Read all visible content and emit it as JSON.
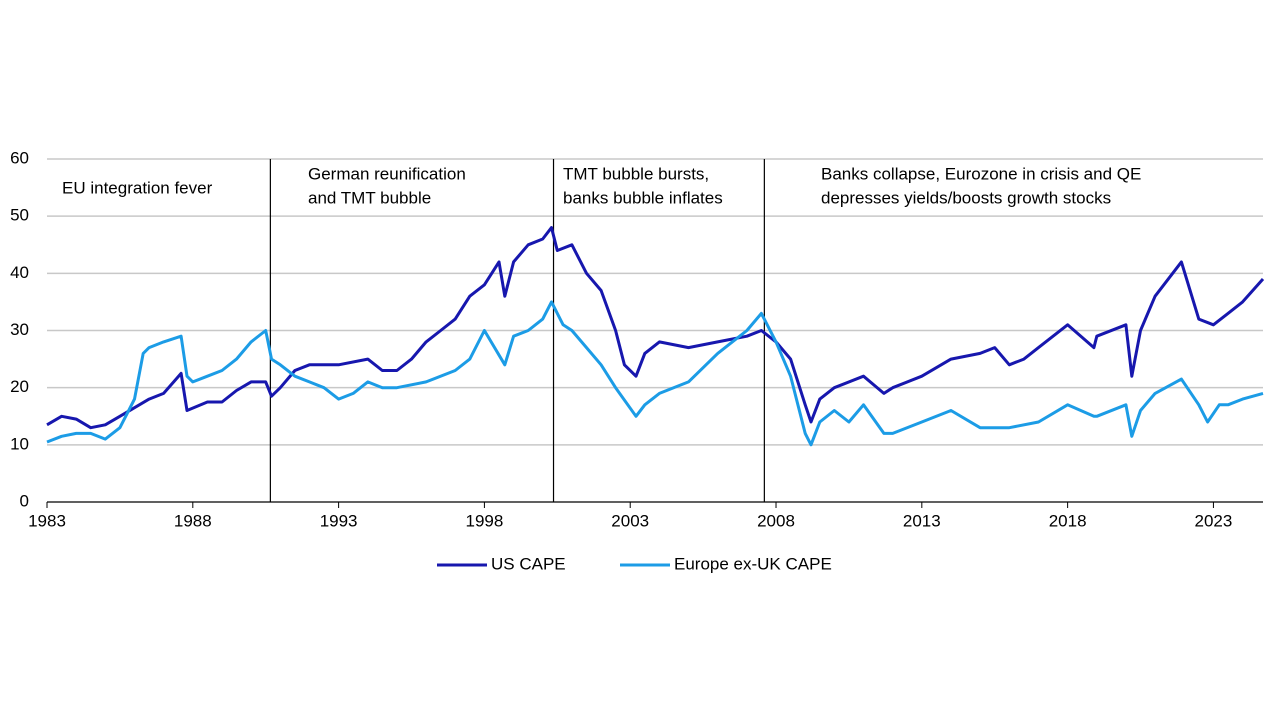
{
  "chart_data": {
    "type": "line",
    "xlim": [
      1983,
      2024.7
    ],
    "xticks": [
      1983,
      1988,
      1993,
      1998,
      2003,
      2008,
      2013,
      2018,
      2023
    ],
    "ylim": [
      0,
      60
    ],
    "yticks": [
      0,
      10,
      20,
      30,
      40,
      50,
      60
    ],
    "grid": true,
    "dividers": [
      1990.66,
      2000.37,
      2007.6
    ],
    "annotations": [
      {
        "lines": [
          "EU integration fever"
        ]
      },
      {
        "lines": [
          "German reunification",
          "and TMT bubble"
        ]
      },
      {
        "lines": [
          "TMT bubble bursts,",
          "banks bubble inflates"
        ]
      },
      {
        "lines": [
          "Banks collapse, Eurozone in crisis and QE",
          "depresses yields/boosts growth stocks"
        ]
      }
    ],
    "series": [
      {
        "name": "US CAPE",
        "color": "#1717ae",
        "x": [
          1983.0,
          1983.5,
          1984.0,
          1984.5,
          1985.0,
          1985.5,
          1986.0,
          1986.5,
          1987.0,
          1987.6,
          1987.8,
          1988.5,
          1989.0,
          1989.5,
          1990.0,
          1990.5,
          1990.7,
          1991.0,
          1991.5,
          1992.0,
          1993.0,
          1994.0,
          1994.5,
          1995.0,
          1995.5,
          1996.0,
          1996.5,
          1997.0,
          1997.5,
          1998.0,
          1998.5,
          1998.7,
          1999.0,
          1999.5,
          2000.0,
          2000.3,
          2000.5,
          2001.0,
          2001.5,
          2002.0,
          2002.5,
          2002.8,
          2003.2,
          2003.5,
          2004.0,
          2005.0,
          2006.0,
          2007.0,
          2007.5,
          2008.0,
          2008.5,
          2009.0,
          2009.2,
          2009.5,
          2010.0,
          2011.0,
          2011.7,
          2012.0,
          2013.0,
          2014.0,
          2015.0,
          2015.5,
          2016.0,
          2016.5,
          2017.0,
          2018.0,
          2018.9,
          2019.0,
          2020.0,
          2020.2,
          2020.5,
          2021.0,
          2021.9,
          2022.5,
          2023.0,
          2023.5,
          2024.0,
          2024.7
        ],
        "values": [
          13.5,
          15,
          14.5,
          13,
          13.5,
          15,
          16.5,
          18,
          19,
          22.5,
          16,
          17.5,
          17.5,
          19.5,
          21,
          21,
          18.5,
          20,
          23,
          24,
          24,
          25,
          23,
          23,
          25,
          28,
          30,
          32,
          36,
          38,
          42,
          36,
          42,
          45,
          46,
          48,
          44,
          45,
          40,
          37,
          30,
          24,
          22,
          26,
          28,
          27,
          28,
          29,
          30,
          28,
          25,
          17,
          14,
          18,
          20,
          22,
          19,
          20,
          22,
          25,
          26,
          27,
          24,
          25,
          27,
          31,
          27,
          29,
          31,
          22,
          30,
          36,
          42,
          32,
          31,
          33,
          35,
          39
        ]
      },
      {
        "name": "Europe ex-UK CAPE",
        "color": "#1c9ce6",
        "x": [
          1983.0,
          1983.5,
          1984.0,
          1984.5,
          1985.0,
          1985.5,
          1986.0,
          1986.3,
          1986.5,
          1987.0,
          1987.6,
          1987.8,
          1988.0,
          1988.5,
          1989.0,
          1989.5,
          1990.0,
          1990.5,
          1990.7,
          1991.0,
          1991.5,
          1992.0,
          1992.5,
          1993.0,
          1993.5,
          1994.0,
          1994.5,
          1995.0,
          1996.0,
          1997.0,
          1997.5,
          1998.0,
          1998.7,
          1999.0,
          1999.5,
          2000.0,
          2000.3,
          2000.7,
          2001.0,
          2001.5,
          2002.0,
          2002.5,
          2003.2,
          2003.5,
          2004.0,
          2005.0,
          2006.0,
          2006.5,
          2007.0,
          2007.5,
          2008.0,
          2008.5,
          2009.0,
          2009.2,
          2009.5,
          2010.0,
          2010.5,
          2011.0,
          2011.7,
          2012.0,
          2013.0,
          2014.0,
          2015.0,
          2016.0,
          2017.0,
          2018.0,
          2018.9,
          2019.0,
          2020.0,
          2020.2,
          2020.5,
          2021.0,
          2021.9,
          2022.5,
          2022.8,
          2023.2,
          2023.5,
          2024.0,
          2024.7
        ],
        "values": [
          10.5,
          11.5,
          12,
          12,
          11,
          13,
          18,
          26,
          27,
          28,
          29,
          22,
          21,
          22,
          23,
          25,
          28,
          30,
          25,
          24,
          22,
          21,
          20,
          18,
          19,
          21,
          20,
          20,
          21,
          23,
          25,
          30,
          24,
          29,
          30,
          32,
          35,
          31,
          30,
          27,
          24,
          20,
          15,
          17,
          19,
          21,
          26,
          28,
          30,
          33,
          28,
          22,
          12,
          10,
          14,
          16,
          14,
          17,
          12,
          12,
          14,
          16,
          13,
          13,
          14,
          17,
          15,
          15,
          17,
          11.5,
          16,
          19,
          21.5,
          17,
          14,
          17,
          17,
          18,
          19
        ]
      }
    ]
  }
}
